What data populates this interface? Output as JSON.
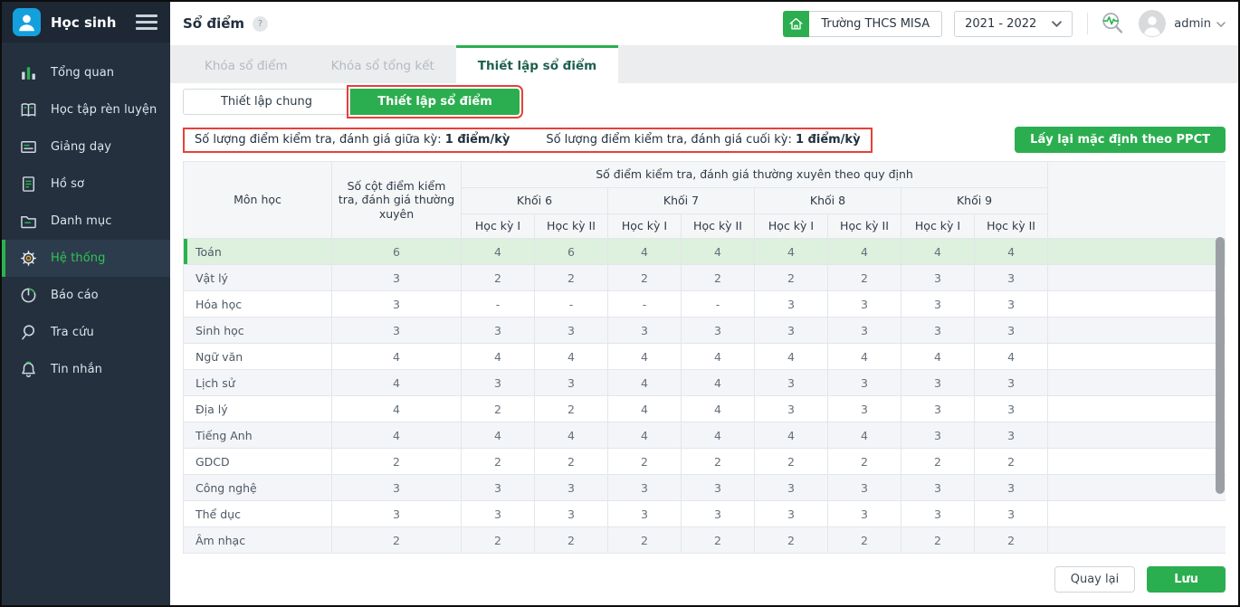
{
  "sidebar": {
    "title": "Học sinh",
    "items": [
      {
        "label": "Tổng quan",
        "icon": "bar-chart-icon",
        "active": false
      },
      {
        "label": "Học tập rèn luyện",
        "icon": "book-icon",
        "active": false
      },
      {
        "label": "Giảng dạy",
        "icon": "board-icon",
        "active": false
      },
      {
        "label": "Hồ sơ",
        "icon": "document-icon",
        "active": false
      },
      {
        "label": "Danh mục",
        "icon": "folder-icon",
        "active": false
      },
      {
        "label": "Hệ thống",
        "icon": "gear-icon",
        "active": true
      },
      {
        "label": "Báo cáo",
        "icon": "pie-chart-icon",
        "active": false
      },
      {
        "label": "Tra cứu",
        "icon": "search-icon",
        "active": false
      },
      {
        "label": "Tin nhắn",
        "icon": "bell-icon",
        "active": false
      }
    ]
  },
  "header": {
    "title": "Sổ điểm",
    "help_badge": "?",
    "school_name": "Trường THCS MISA",
    "school_year": "2021 - 2022",
    "username": "admin"
  },
  "tabs": [
    {
      "label": "Khóa sổ điểm",
      "active": false
    },
    {
      "label": "Khóa sổ tổng kết",
      "active": false
    },
    {
      "label": "Thiết lập sổ điểm",
      "active": true
    }
  ],
  "segments": [
    {
      "label": "Thiết lập chung",
      "active": false,
      "highlighted": false
    },
    {
      "label": "Thiết lập sổ điểm",
      "active": true,
      "highlighted": true
    }
  ],
  "info_bar": {
    "items": [
      {
        "label": "Số lượng điểm kiểm tra, đánh giá giữa kỳ:",
        "value": "1 điểm/kỳ"
      },
      {
        "label": "Số lượng điểm kiểm tra, đánh giá cuối kỳ:",
        "value": "1 điểm/kỳ"
      }
    ],
    "reset_button": "Lấy lại mặc định theo PPCT"
  },
  "table": {
    "header": {
      "subject": "Môn học",
      "columns_count": "Số cột điểm kiểm tra, đánh giá thường xuyên",
      "group_title": "Số điểm kiểm tra, đánh giá thường xuyên theo quy định",
      "grades": [
        "Khối 6",
        "Khối 7",
        "Khối 8",
        "Khối 9"
      ],
      "semester_1": "Học kỳ I",
      "semester_2": "Học kỳ II"
    },
    "rows": [
      {
        "subject": "Toán",
        "cols": "6",
        "values": [
          "4",
          "6",
          "4",
          "4",
          "4",
          "4",
          "4",
          "4"
        ],
        "highlight": true
      },
      {
        "subject": "Vật lý",
        "cols": "3",
        "values": [
          "2",
          "2",
          "2",
          "2",
          "2",
          "2",
          "3",
          "3"
        ],
        "highlight": false
      },
      {
        "subject": "Hóa học",
        "cols": "3",
        "values": [
          "-",
          "-",
          "-",
          "-",
          "3",
          "3",
          "3",
          "3"
        ],
        "highlight": false
      },
      {
        "subject": "Sinh học",
        "cols": "3",
        "values": [
          "3",
          "3",
          "3",
          "3",
          "3",
          "3",
          "3",
          "3"
        ],
        "highlight": false
      },
      {
        "subject": "Ngữ văn",
        "cols": "4",
        "values": [
          "4",
          "4",
          "4",
          "4",
          "4",
          "4",
          "4",
          "4"
        ],
        "highlight": false
      },
      {
        "subject": "Lịch sử",
        "cols": "4",
        "values": [
          "3",
          "3",
          "4",
          "4",
          "3",
          "3",
          "3",
          "3"
        ],
        "highlight": false
      },
      {
        "subject": "Địa lý",
        "cols": "4",
        "values": [
          "2",
          "2",
          "4",
          "4",
          "3",
          "3",
          "3",
          "3"
        ],
        "highlight": false
      },
      {
        "subject": "Tiếng Anh",
        "cols": "4",
        "values": [
          "4",
          "4",
          "4",
          "4",
          "4",
          "4",
          "3",
          "3"
        ],
        "highlight": false
      },
      {
        "subject": "GDCD",
        "cols": "2",
        "values": [
          "2",
          "2",
          "2",
          "2",
          "2",
          "2",
          "2",
          "2"
        ],
        "highlight": false
      },
      {
        "subject": "Công nghệ",
        "cols": "3",
        "values": [
          "3",
          "3",
          "3",
          "3",
          "3",
          "3",
          "3",
          "3"
        ],
        "highlight": false
      },
      {
        "subject": "Thể dục",
        "cols": "3",
        "values": [
          "3",
          "3",
          "3",
          "3",
          "3",
          "3",
          "3",
          "3"
        ],
        "highlight": false
      },
      {
        "subject": "Âm nhạc",
        "cols": "2",
        "values": [
          "2",
          "2",
          "2",
          "2",
          "2",
          "2",
          "2",
          "2"
        ],
        "highlight": false
      }
    ]
  },
  "footer": {
    "back_button": "Quay lại",
    "save_button": "Lưu"
  },
  "colors": {
    "accent_green": "#2bae4f",
    "annotation_red": "#e6403a",
    "sidebar_bg": "#24303e",
    "logo_blue": "#14a0dc",
    "highlight_row": "#def0de"
  }
}
